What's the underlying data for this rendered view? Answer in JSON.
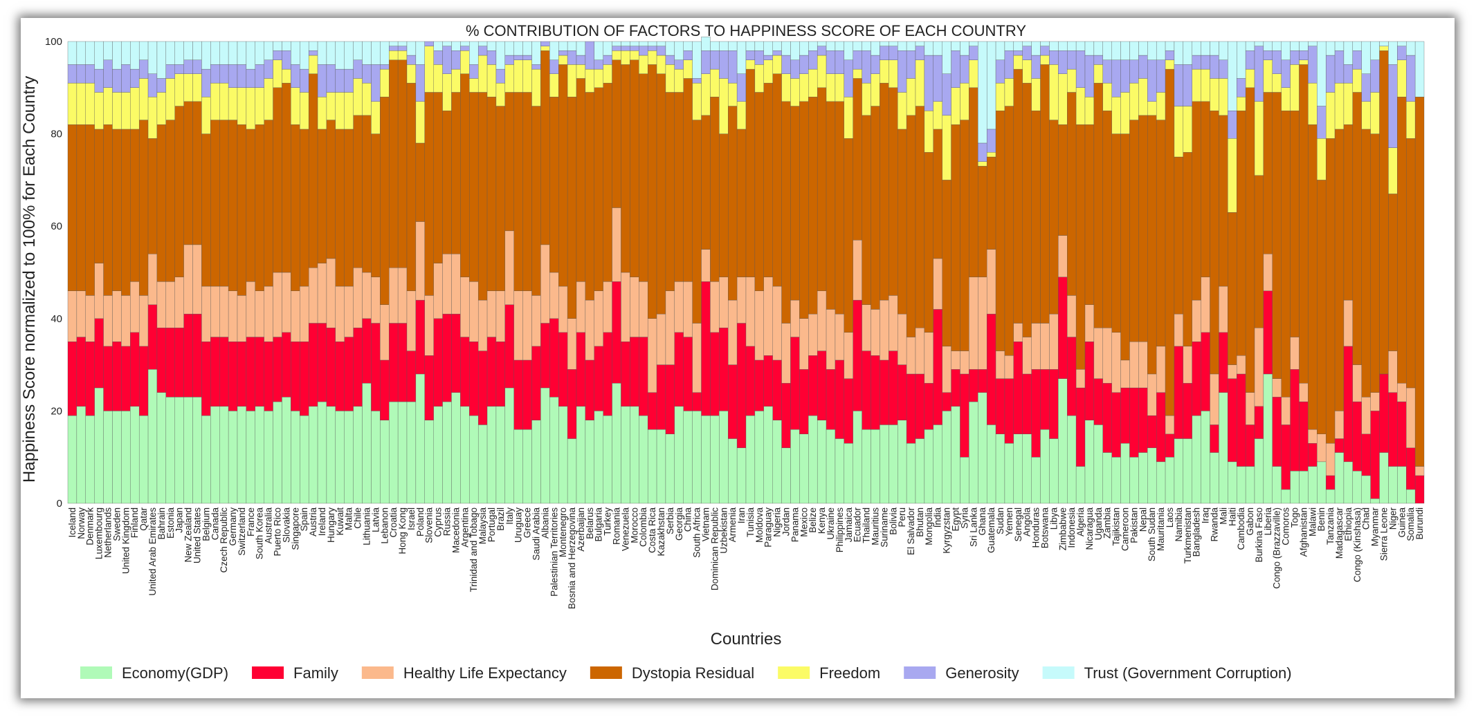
{
  "chart_data": {
    "type": "bar",
    "stacked": true,
    "title": "% CONTRIBUTION OF FACTORS TO HAPPINESS SCORE OF EACH COUNTRY",
    "xlabel": "Countries",
    "ylabel": "Happiness Score normalized to 100% for Each Country",
    "ylim": [
      0,
      100
    ],
    "yticks": [
      0,
      20,
      40,
      60,
      80,
      100
    ],
    "legend_position": "bottom",
    "colors": {
      "Economy(GDP)": "#b0fab8",
      "Family": "#ff0033",
      "Healthy Life Expectancy": "#fbb98c",
      "Dystopia Residual": "#cc6600",
      "Freedom": "#fbfb66",
      "Generosity": "#a8a8f0",
      "Trust (Government Corruption)": "#c6fafb"
    },
    "series_order": [
      "Economy(GDP)",
      "Family",
      "Healthy Life Expectancy",
      "Dystopia Residual",
      "Freedom",
      "Generosity",
      "Trust (Government Corruption)"
    ],
    "columns": [
      "Economy(GDP)",
      "Family",
      "Healthy Life Expectancy",
      "Dystopia Residual",
      "Freedom",
      "Generosity",
      "Trust (Government Corruption)"
    ],
    "rows": [
      [
        "Iceland",
        19,
        16,
        11,
        36,
        9,
        4,
        5
      ],
      [
        "Norway",
        21,
        15,
        10,
        36,
        9,
        4,
        5
      ],
      [
        "Denmark",
        19,
        16,
        10,
        37,
        9,
        4,
        5
      ],
      [
        "Luxembourg",
        25,
        15,
        12,
        29,
        8,
        5,
        6
      ],
      [
        "Netherlands",
        20,
        14,
        11,
        37,
        8,
        6,
        4
      ],
      [
        "Sweden",
        20,
        15,
        11,
        35,
        8,
        5,
        6
      ],
      [
        "United Kingdom",
        20,
        14,
        11,
        36,
        8,
        6,
        5
      ],
      [
        "Finland",
        21,
        16,
        11,
        33,
        9,
        4,
        6
      ],
      [
        "Qatar",
        19,
        15,
        11,
        38,
        9,
        4,
        4
      ],
      [
        "United Arab Emirates",
        29,
        14,
        11,
        25,
        9,
        5,
        7
      ],
      [
        "Bahrain",
        24,
        14,
        10,
        34,
        7,
        3,
        8
      ],
      [
        "Estonia",
        23,
        15,
        10,
        35,
        9,
        3,
        5
      ],
      [
        "Japan",
        23,
        15,
        11,
        37,
        7,
        2,
        5
      ],
      [
        "New Zealand",
        23,
        18,
        15,
        31,
        6,
        3,
        4
      ],
      [
        "United States",
        23,
        18,
        15,
        31,
        6,
        3,
        4
      ],
      [
        "Belgium",
        19,
        16,
        12,
        33,
        8,
        6,
        6
      ],
      [
        "Canada",
        21,
        15,
        11,
        36,
        8,
        4,
        5
      ],
      [
        "Czech Republic",
        21,
        15,
        11,
        36,
        8,
        4,
        5
      ],
      [
        "Germany",
        20,
        15,
        11,
        37,
        7,
        5,
        5
      ],
      [
        "Switzerland",
        21,
        14,
        10,
        37,
        8,
        5,
        5
      ],
      [
        "France",
        20,
        16,
        12,
        33,
        9,
        4,
        6
      ],
      [
        "South Korea",
        21,
        15,
        10,
        36,
        8,
        5,
        5
      ],
      [
        "Australia",
        20,
        15,
        12,
        36,
        9,
        4,
        4
      ],
      [
        "Puerto Rico",
        22,
        14,
        14,
        40,
        6,
        2,
        2
      ],
      [
        "Slovakia",
        23,
        14,
        13,
        41,
        3,
        4,
        2
      ],
      [
        "Singapore",
        20,
        15,
        11,
        36,
        8,
        5,
        5
      ],
      [
        "Spain",
        19,
        16,
        12,
        34,
        8,
        5,
        6
      ],
      [
        "Austria",
        21,
        18,
        12,
        42,
        4,
        1,
        2
      ],
      [
        "Ireland",
        22,
        17,
        13,
        29,
        7,
        7,
        5
      ],
      [
        "Hungary",
        21,
        17,
        15,
        30,
        6,
        6,
        5
      ],
      [
        "Kuwait",
        20,
        15,
        12,
        34,
        8,
        5,
        6
      ],
      [
        "Malta",
        20,
        16,
        11,
        34,
        8,
        5,
        6
      ],
      [
        "Chile",
        21,
        17,
        13,
        33,
        8,
        4,
        4
      ],
      [
        "Lithuania",
        26,
        14,
        10,
        34,
        7,
        4,
        5
      ],
      [
        "Latvia",
        20,
        19,
        10,
        31,
        7,
        8,
        5
      ],
      [
        "Lebanon",
        18,
        13,
        12,
        45,
        6,
        1,
        5
      ],
      [
        "Croatia",
        22,
        17,
        12,
        45,
        2,
        1,
        1
      ],
      [
        "Hong Kong",
        22,
        17,
        12,
        45,
        2,
        1,
        1
      ],
      [
        "Israel",
        22,
        11,
        13,
        45,
        4,
        2,
        3
      ],
      [
        "Poland",
        28,
        16,
        17,
        17,
        9,
        8,
        5
      ],
      [
        "Slovenia",
        18,
        14,
        13,
        44,
        10,
        1,
        0
      ],
      [
        "Cyprus",
        21,
        19,
        12,
        37,
        6,
        3,
        2
      ],
      [
        "Russia",
        22,
        19,
        13,
        31,
        8,
        6,
        1
      ],
      [
        "Macedonia",
        24,
        17,
        13,
        35,
        5,
        4,
        2
      ],
      [
        "Argentina",
        21,
        15,
        13,
        44,
        5,
        1,
        1
      ],
      [
        "Trinidad and Tobago",
        19,
        16,
        13,
        41,
        3,
        3,
        5
      ],
      [
        "Malaysia",
        17,
        16,
        11,
        45,
        8,
        2,
        1
      ],
      [
        "Portugal",
        21,
        15,
        10,
        42,
        7,
        3,
        2
      ],
      [
        "Brazil",
        21,
        14,
        11,
        40,
        5,
        3,
        6
      ],
      [
        "Italy",
        25,
        18,
        16,
        30,
        6,
        2,
        3
      ],
      [
        "Uruguay",
        16,
        15,
        15,
        43,
        7,
        1,
        3
      ],
      [
        "Greece",
        16,
        15,
        15,
        43,
        7,
        1,
        3
      ],
      [
        "Saudi Arabia",
        18,
        16,
        11,
        41,
        8,
        1,
        5
      ],
      [
        "Albania",
        25,
        14,
        17,
        42,
        1,
        1,
        0
      ],
      [
        "Palestinian Territories",
        23,
        17,
        10,
        38,
        5,
        3,
        4
      ],
      [
        "Montenegro",
        21,
        16,
        10,
        48,
        2,
        1,
        2
      ],
      [
        "Bosnia and Herzegovina",
        14,
        15,
        11,
        48,
        7,
        3,
        2
      ],
      [
        "Azerbaijan",
        21,
        16,
        11,
        44,
        3,
        2,
        3
      ],
      [
        "Belarus",
        18,
        13,
        13,
        45,
        5,
        6,
        0
      ],
      [
        "Bulgaria",
        20,
        14,
        12,
        44,
        4,
        2,
        4
      ],
      [
        "Turkey",
        19,
        18,
        11,
        43,
        4,
        2,
        3
      ],
      [
        "Romania",
        26,
        22,
        16,
        32,
        2,
        1,
        1
      ],
      [
        "Venezuela",
        21,
        14,
        15,
        45,
        3,
        1,
        1
      ],
      [
        "Morocco",
        21,
        15,
        13,
        47,
        2,
        1,
        1
      ],
      [
        "Colombia",
        19,
        17,
        12,
        45,
        4,
        2,
        1
      ],
      [
        "Costa Rica",
        16,
        8,
        16,
        55,
        3,
        1,
        1
      ],
      [
        "Kazakhstan",
        16,
        14,
        11,
        52,
        4,
        2,
        1
      ],
      [
        "Serbia",
        15,
        15,
        16,
        43,
        6,
        2,
        3
      ],
      [
        "Georgia",
        21,
        16,
        11,
        41,
        5,
        2,
        4
      ],
      [
        "China",
        20,
        16,
        12,
        44,
        4,
        2,
        2
      ],
      [
        "South Africa",
        20,
        4,
        15,
        44,
        8,
        1,
        8
      ],
      [
        "Vietnam",
        19,
        29,
        7,
        29,
        9,
        5,
        3
      ],
      [
        "Dominican Republic",
        19,
        18,
        11,
        40,
        6,
        4,
        2
      ],
      [
        "Uzbekistan",
        20,
        18,
        11,
        31,
        12,
        6,
        2
      ],
      [
        "Armenia",
        14,
        16,
        14,
        42,
        5,
        7,
        2
      ],
      [
        "Iran",
        12,
        27,
        10,
        32,
        6,
        6,
        7
      ],
      [
        "Tunisia",
        19,
        15,
        15,
        45,
        2,
        2,
        2
      ],
      [
        "Moldova",
        20,
        11,
        15,
        43,
        6,
        3,
        2
      ],
      [
        "Paraguay",
        21,
        11,
        17,
        42,
        5,
        1,
        3
      ],
      [
        "Nigeria",
        18,
        13,
        16,
        46,
        4,
        1,
        2
      ],
      [
        "Jordan",
        12,
        14,
        13,
        48,
        6,
        4,
        3
      ],
      [
        "Panama",
        16,
        20,
        8,
        42,
        6,
        4,
        4
      ],
      [
        "Mexico",
        15,
        14,
        11,
        47,
        6,
        4,
        3
      ],
      [
        "Belize",
        19,
        13,
        9,
        47,
        6,
        4,
        2
      ],
      [
        "Kenya",
        18,
        15,
        13,
        44,
        7,
        2,
        1
      ],
      [
        "Ukraine",
        16,
        13,
        13,
        45,
        6,
        5,
        2
      ],
      [
        "Philippines",
        14,
        17,
        10,
        46,
        6,
        5,
        2
      ],
      [
        "Jamaica",
        13,
        14,
        10,
        42,
        9,
        8,
        4
      ],
      [
        "Ecuador",
        20,
        24,
        13,
        35,
        2,
        4,
        2
      ],
      [
        "Thailand",
        16,
        17,
        10,
        41,
        7,
        7,
        2
      ],
      [
        "Mauritius",
        16,
        16,
        10,
        44,
        7,
        4,
        3
      ],
      [
        "Suriname",
        17,
        14,
        13,
        47,
        5,
        3,
        1
      ],
      [
        "Bolivia",
        17,
        16,
        12,
        45,
        6,
        3,
        1
      ],
      [
        "Peru",
        18,
        12,
        11,
        40,
        8,
        9,
        2
      ],
      [
        "El Salvador",
        13,
        15,
        8,
        48,
        8,
        6,
        2
      ],
      [
        "Bhutan",
        14,
        14,
        10,
        48,
        10,
        3,
        1
      ],
      [
        "Mongolia",
        16,
        10,
        11,
        39,
        9,
        12,
        3
      ],
      [
        "India",
        17,
        25,
        11,
        28,
        6,
        10,
        3
      ],
      [
        "Kyrgyzstan",
        20,
        4,
        10,
        36,
        14,
        9,
        7
      ],
      [
        "Egypt",
        21,
        8,
        4,
        49,
        8,
        8,
        2
      ],
      [
        "Syria",
        10,
        18,
        5,
        50,
        8,
        6,
        3
      ],
      [
        "Sri Lanka",
        22,
        7,
        20,
        41,
        6,
        3,
        1
      ],
      [
        "Ghana",
        24,
        5,
        20,
        24,
        1,
        4,
        22
      ],
      [
        "Guatemala",
        17,
        24,
        14,
        20,
        1,
        5,
        19
      ],
      [
        "Sudan",
        15,
        12,
        6,
        52,
        6,
        5,
        4
      ],
      [
        "Yemen",
        13,
        14,
        5,
        54,
        6,
        6,
        2
      ],
      [
        "Senegal",
        15,
        20,
        4,
        55,
        3,
        1,
        2
      ],
      [
        "Angola",
        15,
        13,
        8,
        55,
        5,
        3,
        1
      ],
      [
        "Honduras",
        10,
        19,
        10,
        46,
        7,
        5,
        3
      ],
      [
        "Botswana",
        16,
        13,
        10,
        56,
        2,
        2,
        1
      ],
      [
        "Libya",
        14,
        15,
        12,
        42,
        12,
        3,
        2
      ],
      [
        "Zimbabwe",
        27,
        22,
        9,
        24,
        11,
        5,
        2
      ],
      [
        "Indonesia",
        19,
        17,
        9,
        44,
        5,
        4,
        2
      ],
      [
        "Algeria",
        8,
        17,
        4,
        53,
        8,
        8,
        2
      ],
      [
        "Nicaragua",
        18,
        17,
        8,
        39,
        6,
        9,
        3
      ],
      [
        "Uganda",
        17,
        10,
        11,
        53,
        4,
        2,
        3
      ],
      [
        "Zambia",
        11,
        15,
        12,
        47,
        6,
        5,
        4
      ],
      [
        "Tajikistan",
        10,
        14,
        13,
        43,
        8,
        8,
        4
      ],
      [
        "Cameroon",
        13,
        12,
        6,
        49,
        9,
        7,
        4
      ],
      [
        "Pakistan",
        10,
        15,
        10,
        48,
        8,
        5,
        4
      ],
      [
        "Nepal",
        11,
        14,
        10,
        49,
        8,
        5,
        3
      ],
      [
        "South Sudan",
        12,
        7,
        9,
        56,
        3,
        9,
        4
      ],
      [
        "Mauritania",
        9,
        15,
        10,
        49,
        6,
        7,
        4
      ],
      [
        "Laos",
        10,
        5,
        4,
        75,
        2,
        2,
        2
      ],
      [
        "Namibia",
        14,
        20,
        7,
        34,
        11,
        9,
        5
      ],
      [
        "Turkmenistan",
        14,
        12,
        8,
        42,
        10,
        9,
        5
      ],
      [
        "Bangladesh",
        19,
        16,
        9,
        43,
        7,
        3,
        3
      ],
      [
        "Iraq",
        20,
        17,
        12,
        38,
        7,
        3,
        3
      ],
      [
        "Rwanda",
        11,
        6,
        11,
        57,
        7,
        5,
        3
      ],
      [
        "Mali",
        24,
        13,
        10,
        37,
        8,
        4,
        4
      ],
      [
        "Haiti",
        9,
        18,
        3,
        33,
        16,
        6,
        15
      ],
      [
        "Cambodia",
        8,
        20,
        4,
        53,
        3,
        4,
        8
      ],
      [
        "Gabon",
        8,
        9,
        7,
        66,
        4,
        4,
        2
      ],
      [
        "Burkina Faso",
        14,
        7,
        17,
        33,
        16,
        12,
        1
      ],
      [
        "Liberia",
        28,
        18,
        8,
        35,
        7,
        2,
        2
      ],
      [
        "Congo (Brazzaville)",
        8,
        15,
        4,
        62,
        4,
        5,
        2
      ],
      [
        "Comoros",
        3,
        14,
        6,
        62,
        5,
        6,
        4
      ],
      [
        "Togo",
        7,
        22,
        7,
        49,
        10,
        3,
        2
      ],
      [
        "Afghanistan",
        7,
        15,
        4,
        69,
        1,
        2,
        2
      ],
      [
        "Malawi",
        8,
        5,
        3,
        66,
        9,
        8,
        1
      ],
      [
        "Benin",
        9,
        0,
        6,
        55,
        9,
        7,
        14
      ],
      [
        "Tanzania",
        3,
        3,
        7,
        66,
        10,
        8,
        3
      ],
      [
        "Madagascar",
        11,
        3,
        6,
        61,
        10,
        7,
        2
      ],
      [
        "Ethiopia",
        9,
        25,
        10,
        38,
        9,
        4,
        5
      ],
      [
        "Congo (Kinshasa)",
        7,
        15,
        8,
        59,
        5,
        4,
        2
      ],
      [
        "Chad",
        6,
        9,
        8,
        58,
        6,
        6,
        7
      ],
      [
        "Myanmar",
        1,
        19,
        4,
        56,
        9,
        7,
        4
      ],
      [
        "Sierra Leone",
        11,
        17,
        0,
        70,
        1,
        0,
        1
      ],
      [
        "Niger",
        8,
        16,
        9,
        34,
        10,
        18,
        5
      ],
      [
        "Guinea",
        8,
        14,
        4,
        62,
        8,
        3,
        1
      ],
      [
        "Somalia",
        3,
        9,
        13,
        54,
        8,
        10,
        3
      ],
      [
        "Burundi",
        0,
        6,
        2,
        80,
        0,
        0,
        12
      ]
    ]
  }
}
